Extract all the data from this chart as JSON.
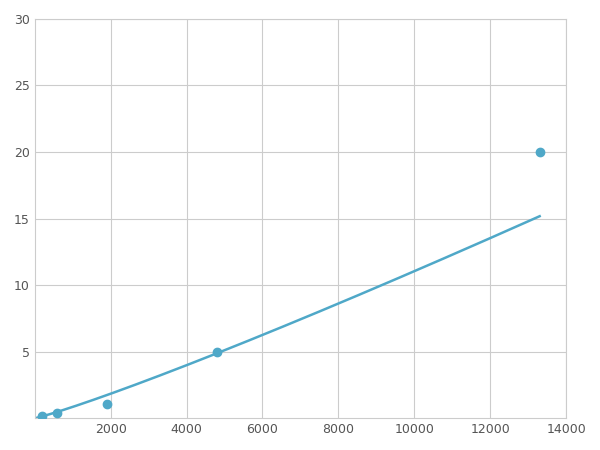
{
  "x": [
    200,
    600,
    1900,
    4800,
    13300
  ],
  "y": [
    0.2,
    0.4,
    1.1,
    5.0,
    20.0
  ],
  "line_color": "#4fa8c8",
  "marker_color": "#4fa8c8",
  "marker_size": 6,
  "line_width": 1.8,
  "xlim": [
    0,
    14000
  ],
  "ylim": [
    0,
    30
  ],
  "xticks": [
    2000,
    4000,
    6000,
    8000,
    10000,
    12000,
    14000
  ],
  "yticks": [
    5,
    10,
    15,
    20,
    25,
    30
  ],
  "grid_color": "#cccccc",
  "background_color": "#ffffff",
  "spine_color": "#cccccc"
}
